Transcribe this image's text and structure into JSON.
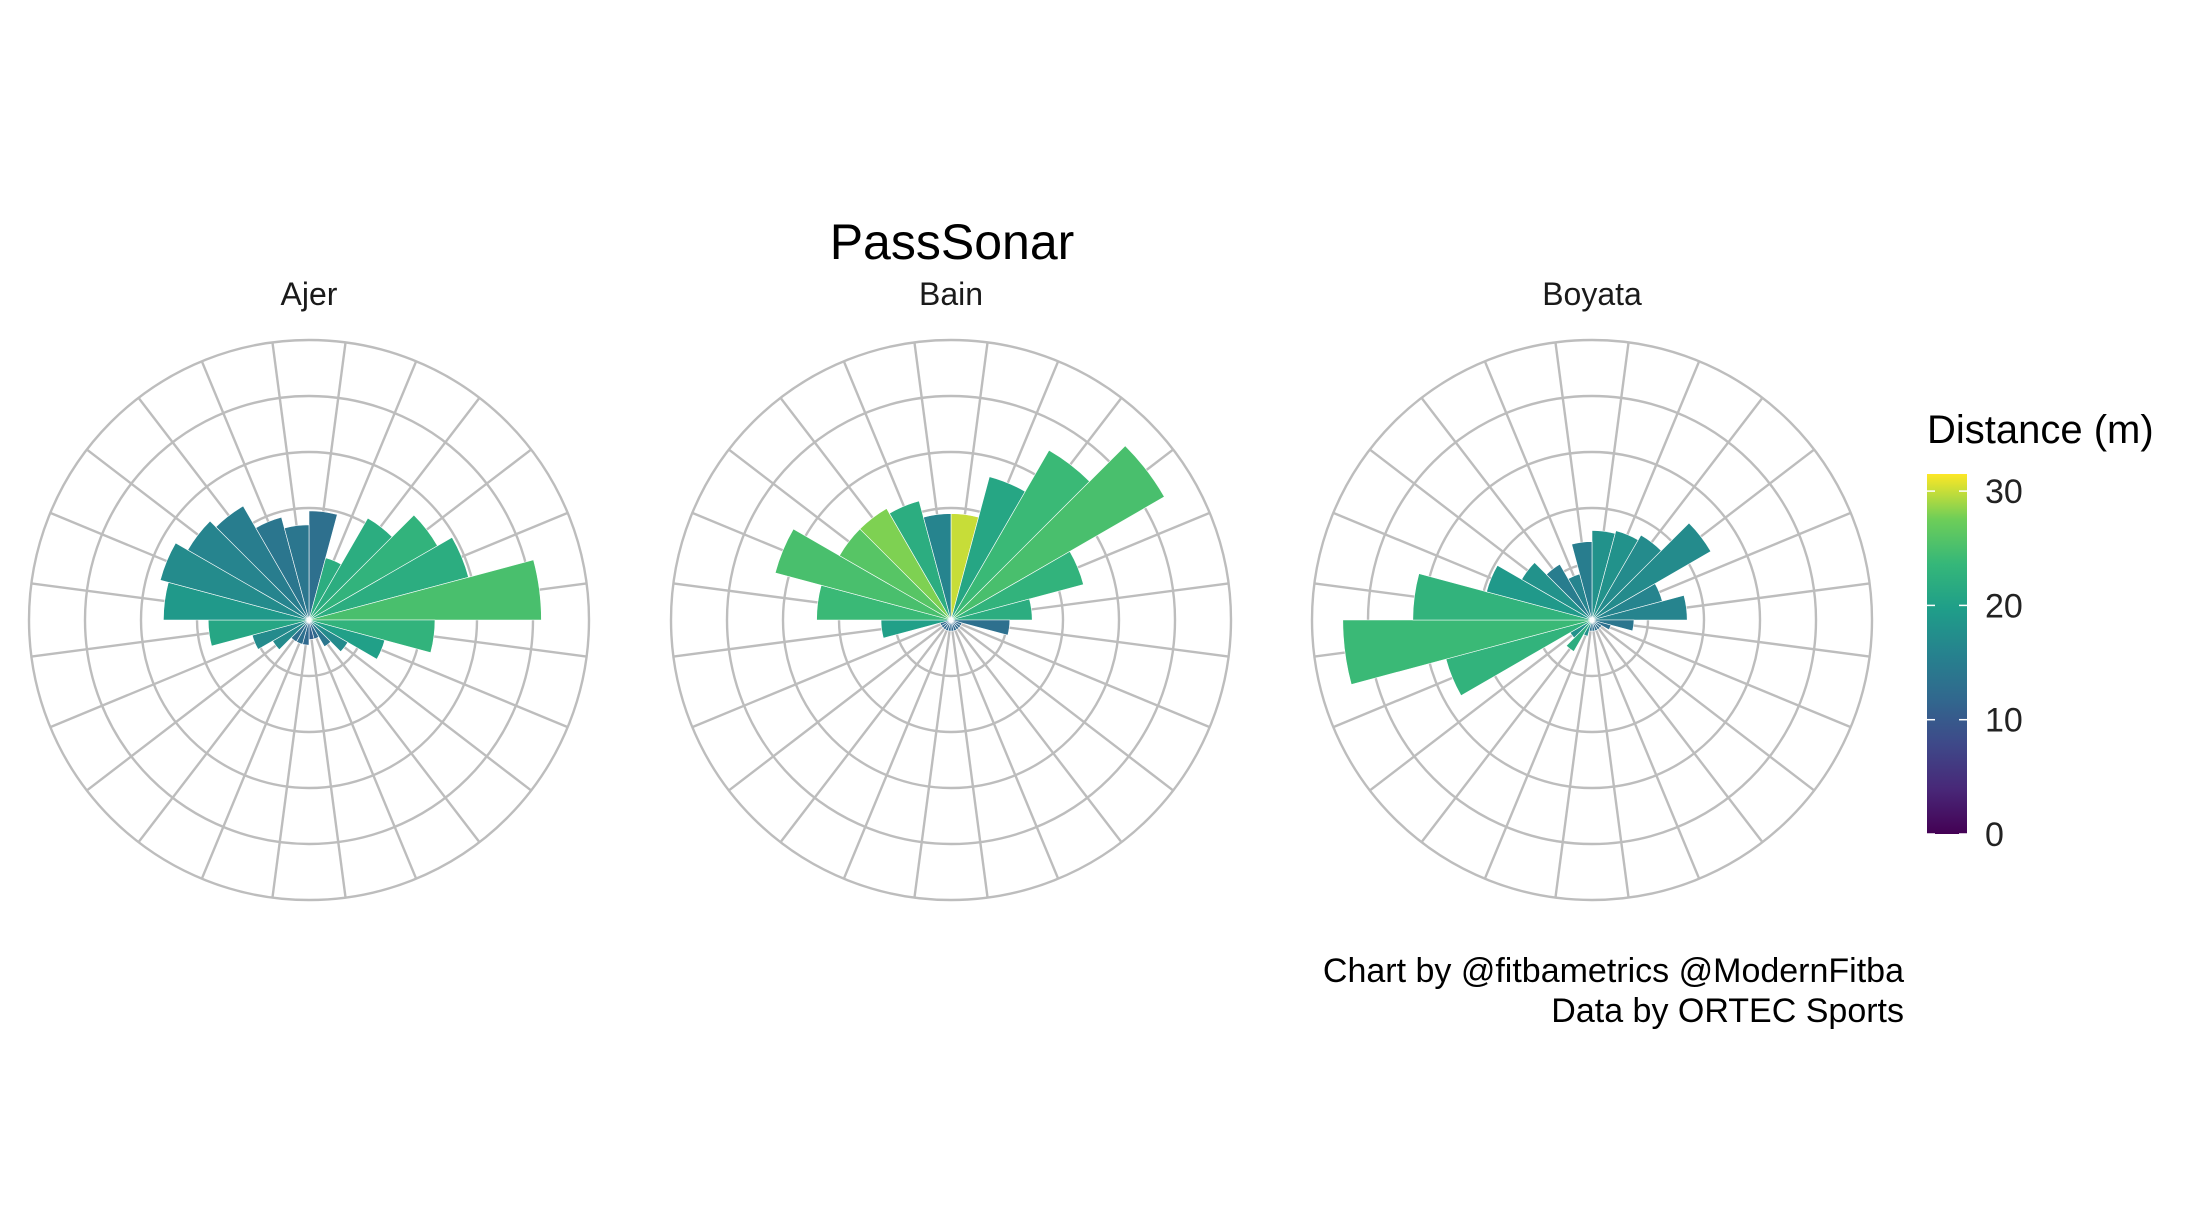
{
  "chart_data": {
    "type": "polar-bar",
    "title": "PassSonar",
    "caption_lines": [
      "Chart by @fitbametrics @ModernFitba",
      "Data by ORTEC Sports"
    ],
    "legend": {
      "title": "Distance (m)",
      "ticks": [
        0,
        10,
        20,
        30
      ],
      "min": 0,
      "max": 31.5,
      "placement": "right",
      "palette": "viridis"
    },
    "sectors": 24,
    "sector_width_deg": 15,
    "angle_convention": "degrees clockwise from 12 o'clock",
    "radial_max": 10,
    "rings": 5,
    "panels": [
      {
        "name": "Ajer",
        "bars": [
          {
            "angle": 7.5,
            "length": 3.9,
            "distance": 13
          },
          {
            "angle": 22.5,
            "length": 2.3,
            "distance": 22
          },
          {
            "angle": 37.5,
            "length": 4.2,
            "distance": 22
          },
          {
            "angle": 52.5,
            "length": 5.3,
            "distance": 23
          },
          {
            "angle": 67.5,
            "length": 5.9,
            "distance": 22
          },
          {
            "angle": 82.5,
            "length": 8.3,
            "distance": 25
          },
          {
            "angle": 97.5,
            "length": 4.5,
            "distance": 23
          },
          {
            "angle": 112.5,
            "length": 2.8,
            "distance": 20
          },
          {
            "angle": 127.5,
            "length": 1.6,
            "distance": 17
          },
          {
            "angle": 142.5,
            "length": 1.1,
            "distance": 14
          },
          {
            "angle": 157.5,
            "length": 0.7,
            "distance": 12
          },
          {
            "angle": 172.5,
            "length": 0.7,
            "distance": 11
          },
          {
            "angle": 187.5,
            "length": 0.9,
            "distance": 12
          },
          {
            "angle": 202.5,
            "length": 0.9,
            "distance": 13
          },
          {
            "angle": 217.5,
            "length": 0.9,
            "distance": 13
          },
          {
            "angle": 232.5,
            "length": 1.5,
            "distance": 17
          },
          {
            "angle": 247.5,
            "length": 2.1,
            "distance": 17
          },
          {
            "angle": 262.5,
            "length": 3.6,
            "distance": 21
          },
          {
            "angle": 277.5,
            "length": 5.2,
            "distance": 19
          },
          {
            "angle": 292.5,
            "length": 5.5,
            "distance": 17
          },
          {
            "angle": 307.5,
            "length": 5.0,
            "distance": 16
          },
          {
            "angle": 322.5,
            "length": 4.7,
            "distance": 15
          },
          {
            "angle": 337.5,
            "length": 3.8,
            "distance": 14
          },
          {
            "angle": 352.5,
            "length": 3.4,
            "distance": 14
          }
        ]
      },
      {
        "name": "Bain",
        "bars": [
          {
            "angle": 7.5,
            "length": 3.8,
            "distance": 30
          },
          {
            "angle": 22.5,
            "length": 5.3,
            "distance": 21
          },
          {
            "angle": 37.5,
            "length": 7.0,
            "distance": 24
          },
          {
            "angle": 52.5,
            "length": 8.8,
            "distance": 25
          },
          {
            "angle": 67.5,
            "length": 4.9,
            "distance": 23
          },
          {
            "angle": 82.5,
            "length": 2.9,
            "distance": 22
          },
          {
            "angle": 97.5,
            "length": 2.1,
            "distance": 13
          },
          {
            "angle": 112.5,
            "length": 0.4,
            "distance": 12
          },
          {
            "angle": 127.5,
            "length": 0.4,
            "distance": 12
          },
          {
            "angle": 142.5,
            "length": 0.4,
            "distance": 12
          },
          {
            "angle": 157.5,
            "length": 0.4,
            "distance": 12
          },
          {
            "angle": 172.5,
            "length": 0.4,
            "distance": 12
          },
          {
            "angle": 187.5,
            "length": 0.4,
            "distance": 12
          },
          {
            "angle": 202.5,
            "length": 0.4,
            "distance": 12
          },
          {
            "angle": 217.5,
            "length": 0.4,
            "distance": 12
          },
          {
            "angle": 232.5,
            "length": 0.4,
            "distance": 12
          },
          {
            "angle": 247.5,
            "length": 0.4,
            "distance": 12
          },
          {
            "angle": 262.5,
            "length": 2.5,
            "distance": 20
          },
          {
            "angle": 277.5,
            "length": 4.8,
            "distance": 24
          },
          {
            "angle": 292.5,
            "length": 6.5,
            "distance": 25
          },
          {
            "angle": 307.5,
            "length": 4.6,
            "distance": 26
          },
          {
            "angle": 322.5,
            "length": 4.6,
            "distance": 28
          },
          {
            "angle": 337.5,
            "length": 4.4,
            "distance": 22
          },
          {
            "angle": 352.5,
            "length": 3.8,
            "distance": 16
          }
        ]
      },
      {
        "name": "Boyata",
        "bars": [
          {
            "angle": 7.5,
            "length": 3.2,
            "distance": 18
          },
          {
            "angle": 22.5,
            "length": 3.3,
            "distance": 18
          },
          {
            "angle": 37.5,
            "length": 3.5,
            "distance": 17
          },
          {
            "angle": 52.5,
            "length": 4.9,
            "distance": 17
          },
          {
            "angle": 67.5,
            "length": 2.6,
            "distance": 16
          },
          {
            "angle": 82.5,
            "length": 3.4,
            "distance": 16
          },
          {
            "angle": 97.5,
            "length": 1.5,
            "distance": 14
          },
          {
            "angle": 112.5,
            "length": 0.7,
            "distance": 13
          },
          {
            "angle": 127.5,
            "length": 0.4,
            "distance": 13
          },
          {
            "angle": 142.5,
            "length": 0.4,
            "distance": 13
          },
          {
            "angle": 157.5,
            "length": 0.4,
            "distance": 13
          },
          {
            "angle": 172.5,
            "length": 0.4,
            "distance": 13
          },
          {
            "angle": 187.5,
            "length": 0.4,
            "distance": 13
          },
          {
            "angle": 202.5,
            "length": 0.6,
            "distance": 18
          },
          {
            "angle": 217.5,
            "length": 1.3,
            "distance": 22
          },
          {
            "angle": 232.5,
            "length": 0.9,
            "distance": 18
          },
          {
            "angle": 247.5,
            "length": 5.4,
            "distance": 23
          },
          {
            "angle": 262.5,
            "length": 8.9,
            "distance": 24
          },
          {
            "angle": 277.5,
            "length": 6.4,
            "distance": 23
          },
          {
            "angle": 292.5,
            "length": 3.9,
            "distance": 19
          },
          {
            "angle": 307.5,
            "length": 2.9,
            "distance": 18
          },
          {
            "angle": 322.5,
            "length": 2.3,
            "distance": 15
          },
          {
            "angle": 337.5,
            "length": 1.7,
            "distance": 16
          },
          {
            "angle": 352.5,
            "length": 2.8,
            "distance": 15
          }
        ]
      }
    ]
  }
}
